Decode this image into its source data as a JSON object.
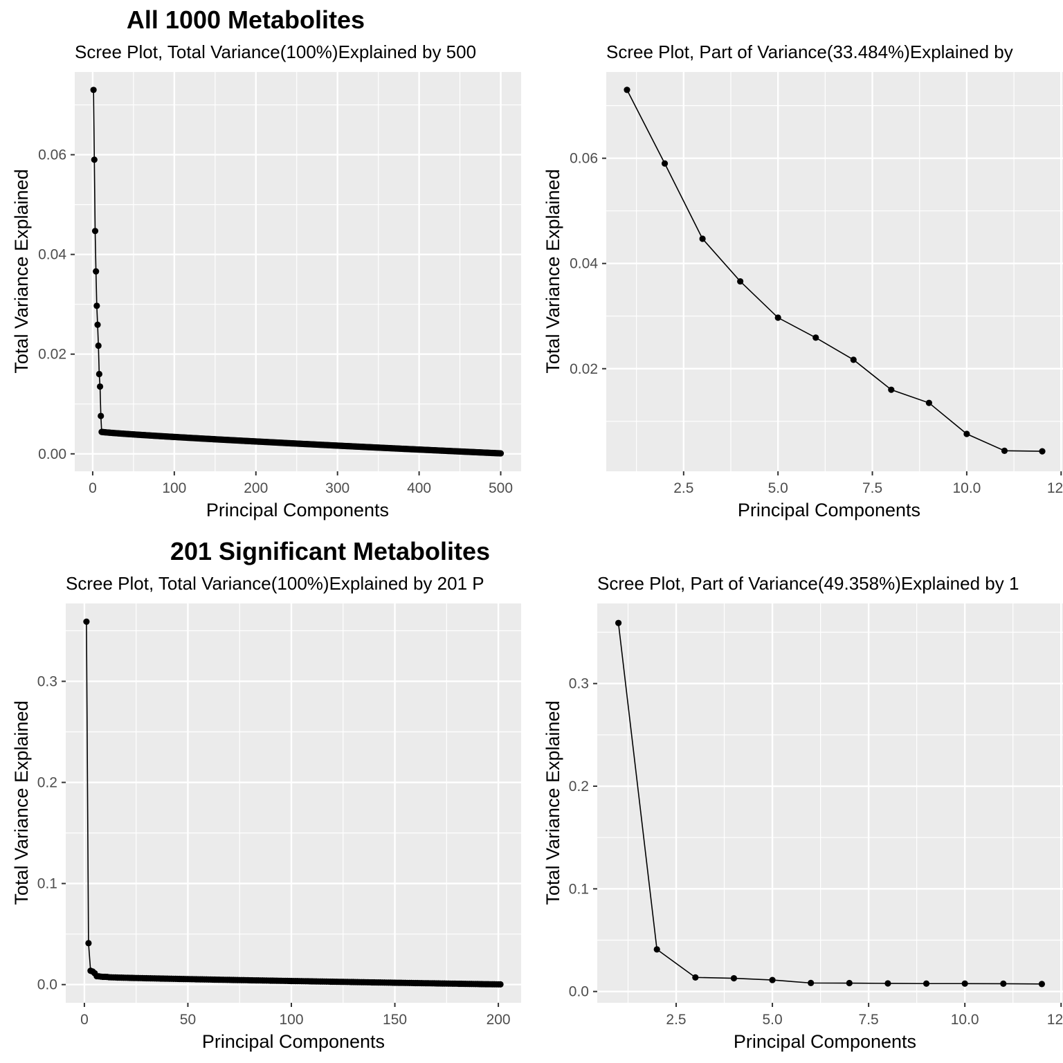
{
  "sections": [
    {
      "title": "All 1000 Metabolites"
    },
    {
      "title": "201 Significant Metabolites"
    }
  ],
  "colors": {
    "panel_background": "#ebebeb",
    "grid_major": "#ffffff",
    "line": "#000000",
    "point": "#000000",
    "tick_label": "#4d4d4d"
  },
  "chart_data": [
    {
      "type": "line",
      "subtitle": "Scree Plot, Total Variance(100%)Explained by 500",
      "xlabel": "Principal Components",
      "ylabel": "Total Variance Explained",
      "xlim": [
        -22,
        525
      ],
      "ylim": [
        -0.0035,
        0.0766
      ],
      "x_ticks": [
        0,
        100,
        200,
        300,
        400,
        500
      ],
      "x_tick_labels": [
        "0",
        "100",
        "200",
        "300",
        "400",
        "500"
      ],
      "y_ticks": [
        0,
        0.02,
        0.04,
        0.06
      ],
      "y_tick_labels": [
        "0.00",
        "0.02",
        "0.04",
        "0.06"
      ],
      "grid": true,
      "markers": "points",
      "series": [
        {
          "lead_x": [
            1,
            2,
            3,
            4,
            5,
            6,
            7,
            8,
            9,
            10
          ],
          "lead_y": [
            0.073,
            0.059,
            0.0447,
            0.0366,
            0.0297,
            0.0259,
            0.0217,
            0.016,
            0.0135,
            0.0076
          ],
          "tail_start": 11,
          "tail_end": 500,
          "tail_first_value": 0.0044,
          "tail_last_value": 0.0001,
          "tail_curve_power": 0.85
        }
      ]
    },
    {
      "type": "line",
      "subtitle": "Scree Plot, Part of Variance(33.484%)Explained by",
      "xlabel": "Principal Components",
      "ylabel": "Total Variance Explained",
      "xlim": [
        0.45,
        12.55
      ],
      "ylim": [
        0.0005,
        0.0764
      ],
      "x_ticks": [
        2.5,
        5.0,
        7.5,
        10.0,
        12.5
      ],
      "x_tick_labels": [
        "2.5",
        "5.0",
        "7.5",
        "10.0",
        "12.5"
      ],
      "y_ticks": [
        0.02,
        0.04,
        0.06
      ],
      "y_tick_labels": [
        "0.02",
        "0.04",
        "0.06"
      ],
      "grid": true,
      "markers": "points",
      "series": [
        {
          "x": [
            1,
            2,
            3,
            4,
            5,
            6,
            7,
            8,
            9,
            10,
            11,
            12
          ],
          "y": [
            0.073,
            0.059,
            0.0447,
            0.0366,
            0.0297,
            0.0259,
            0.0217,
            0.016,
            0.0135,
            0.0076,
            0.0044,
            0.0043
          ]
        }
      ]
    },
    {
      "type": "line",
      "subtitle": "Scree Plot, Total Variance(100%)Explained by 201 P",
      "xlabel": "Principal Components",
      "ylabel": "Total Variance Explained",
      "xlim": [
        -9,
        211
      ],
      "ylim": [
        -0.018,
        0.377
      ],
      "x_ticks": [
        0,
        50,
        100,
        150,
        200
      ],
      "x_tick_labels": [
        "0",
        "50",
        "100",
        "150",
        "200"
      ],
      "y_ticks": [
        0,
        0.1,
        0.2,
        0.3
      ],
      "y_tick_labels": [
        "0.0",
        "0.1",
        "0.2",
        "0.3"
      ],
      "grid": true,
      "markers": "points",
      "series": [
        {
          "lead_x": [
            1,
            2,
            3,
            4,
            5,
            6,
            7,
            8,
            9,
            10,
            11,
            12
          ],
          "lead_y": [
            0.359,
            0.041,
            0.0137,
            0.0129,
            0.0112,
            0.0083,
            0.0082,
            0.0079,
            0.0077,
            0.0077,
            0.0076,
            0.0073
          ],
          "tail_start": 13,
          "tail_end": 201,
          "tail_first_value": 0.0072,
          "tail_last_value": 0.0002,
          "tail_curve_power": 0.85
        }
      ]
    },
    {
      "type": "line",
      "subtitle": "Scree Plot, Part of Variance(49.358%)Explained by 1",
      "xlabel": "Principal Components",
      "ylabel": "Total Variance Explained",
      "xlim": [
        0.45,
        12.55
      ],
      "ylim": [
        -0.011,
        0.378
      ],
      "x_ticks": [
        2.5,
        5.0,
        7.5,
        10.0,
        12.5
      ],
      "x_tick_labels": [
        "2.5",
        "5.0",
        "7.5",
        "10.0",
        "12.5"
      ],
      "y_ticks": [
        0,
        0.1,
        0.2,
        0.3
      ],
      "y_tick_labels": [
        "0.0",
        "0.1",
        "0.2",
        "0.3"
      ],
      "grid": true,
      "markers": "points",
      "series": [
        {
          "x": [
            1,
            2,
            3,
            4,
            5,
            6,
            7,
            8,
            9,
            10,
            11,
            12
          ],
          "y": [
            0.359,
            0.041,
            0.0137,
            0.0129,
            0.0112,
            0.0083,
            0.0082,
            0.0079,
            0.0077,
            0.0077,
            0.0076,
            0.0073
          ]
        }
      ]
    }
  ]
}
